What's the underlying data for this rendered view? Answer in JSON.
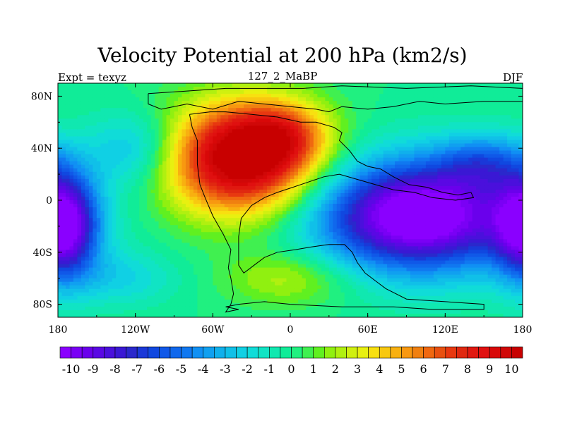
{
  "chart_data": {
    "type": "heatmap",
    "title": "Velocity Potential at 200 hPa (km2/s)",
    "left_string": "Expt = texyz",
    "center_string": "127_2_MaBP",
    "right_string": "DJF",
    "x_ticks": [
      {
        "value": -180,
        "label": "180"
      },
      {
        "value": -120,
        "label": "120W"
      },
      {
        "value": -60,
        "label": "60W"
      },
      {
        "value": 0,
        "label": "0"
      },
      {
        "value": 60,
        "label": "60E"
      },
      {
        "value": 120,
        "label": "120E"
      },
      {
        "value": 180,
        "label": "180"
      }
    ],
    "y_ticks": [
      {
        "value": 80,
        "label": "80N"
      },
      {
        "value": 40,
        "label": "40N"
      },
      {
        "value": 0,
        "label": "0"
      },
      {
        "value": -40,
        "label": "40S"
      },
      {
        "value": -80,
        "label": "80S"
      }
    ],
    "xlim": [
      -180,
      180
    ],
    "ylim": [
      -90,
      90
    ],
    "colorbar": {
      "min": -10.5,
      "max": 10.5,
      "step": 0.5,
      "labels": [
        "-10",
        "-9",
        "-8",
        "-7",
        "-6",
        "-5",
        "-4",
        "-3",
        "-2",
        "-1",
        "0",
        "1",
        "2",
        "3",
        "4",
        "5",
        "6",
        "7",
        "8",
        "9",
        "10"
      ],
      "label_values": [
        -10,
        -9,
        -8,
        -7,
        -6,
        -5,
        -4,
        -3,
        -2,
        -1,
        0,
        1,
        2,
        3,
        4,
        5,
        6,
        7,
        8,
        9,
        10
      ],
      "colors": [
        "#8a00ff",
        "#7a00f5",
        "#6a00ec",
        "#5a08e4",
        "#4a10dc",
        "#3a18d4",
        "#2a28cc",
        "#1a38d8",
        "#1048e0",
        "#1058e8",
        "#1068ec",
        "#1078f0",
        "#1090f4",
        "#10a0f0",
        "#10b0ec",
        "#10c0e8",
        "#10d0e4",
        "#10dcd8",
        "#10e4c4",
        "#10e8b0",
        "#10ec98",
        "#20f080",
        "#40f050",
        "#60f020",
        "#90f010",
        "#b0f010",
        "#d0f010",
        "#e8f010",
        "#f8e010",
        "#f8c810",
        "#f8b010",
        "#f89810",
        "#f08010",
        "#f06810",
        "#e85010",
        "#e83810",
        "#e02810",
        "#e01810",
        "#e01010",
        "#d80808",
        "#d00808",
        "#c80000"
      ]
    },
    "field_centers": [
      {
        "lon": -38,
        "lat": 32,
        "amplitude": 11.5,
        "lon_width": 40,
        "lat_width": 30
      },
      {
        "lon": -5,
        "lat": 50,
        "amplitude": 4.0,
        "lon_width": 25,
        "lat_width": 18
      },
      {
        "lon": 100,
        "lat": -12,
        "amplitude": -12.0,
        "lon_width": 55,
        "lat_width": 30
      },
      {
        "lon": -175,
        "lat": -20,
        "amplitude": -9.0,
        "lon_width": 18,
        "lat_width": 28
      },
      {
        "lon": 150,
        "lat": 30,
        "amplitude": -3.5,
        "lon_width": 25,
        "lat_width": 15
      },
      {
        "lon": -120,
        "lat": 40,
        "amplitude": -3.0,
        "lon_width": 25,
        "lat_width": 20
      },
      {
        "lon": -130,
        "lat": -60,
        "amplitude": -2.0,
        "lon_width": 30,
        "lat_width": 15
      },
      {
        "lon": 0,
        "lat": -60,
        "amplitude": 2.5,
        "lon_width": 35,
        "lat_width": 15
      }
    ],
    "coastlines": [
      {
        "name": "north-landmass",
        "points": [
          [
            -110,
            82
          ],
          [
            -80,
            84
          ],
          [
            -50,
            86
          ],
          [
            -20,
            86
          ],
          [
            10,
            86
          ],
          [
            40,
            88
          ],
          [
            90,
            86
          ],
          [
            140,
            88
          ],
          [
            180,
            86
          ],
          [
            180,
            76
          ],
          [
            150,
            76
          ],
          [
            120,
            74
          ],
          [
            100,
            76
          ],
          [
            80,
            72
          ],
          [
            60,
            70
          ],
          [
            40,
            72
          ],
          [
            30,
            68
          ],
          [
            20,
            70
          ],
          [
            0,
            72
          ],
          [
            -20,
            74
          ],
          [
            -40,
            76
          ],
          [
            -60,
            70
          ],
          [
            -80,
            74
          ],
          [
            -100,
            70
          ],
          [
            -110,
            74
          ],
          [
            -110,
            82
          ]
        ]
      },
      {
        "name": "america-block",
        "points": [
          [
            -78,
            66
          ],
          [
            -62,
            68
          ],
          [
            -50,
            68
          ],
          [
            -30,
            66
          ],
          [
            -10,
            64
          ],
          [
            8,
            60
          ],
          [
            20,
            60
          ],
          [
            34,
            56
          ],
          [
            40,
            52
          ],
          [
            38,
            46
          ],
          [
            46,
            38
          ],
          [
            52,
            30
          ],
          [
            60,
            26
          ],
          [
            70,
            24
          ],
          [
            80,
            18
          ],
          [
            92,
            12
          ],
          [
            106,
            10
          ],
          [
            118,
            6
          ],
          [
            130,
            4
          ],
          [
            140,
            6
          ],
          [
            142,
            2
          ],
          [
            128,
            0
          ],
          [
            110,
            2
          ],
          [
            96,
            6
          ],
          [
            80,
            8
          ],
          [
            66,
            12
          ],
          [
            52,
            16
          ],
          [
            38,
            20
          ],
          [
            26,
            18
          ],
          [
            14,
            14
          ],
          [
            2,
            10
          ],
          [
            -10,
            6
          ],
          [
            -20,
            2
          ],
          [
            -30,
            -4
          ],
          [
            -38,
            -14
          ],
          [
            -40,
            -28
          ],
          [
            -40,
            -50
          ],
          [
            -36,
            -56
          ],
          [
            -28,
            -50
          ],
          [
            -20,
            -44
          ],
          [
            -10,
            -40
          ],
          [
            4,
            -38
          ],
          [
            16,
            -36
          ],
          [
            30,
            -34
          ],
          [
            42,
            -34
          ],
          [
            48,
            -40
          ],
          [
            52,
            -48
          ],
          [
            58,
            -56
          ],
          [
            66,
            -62
          ],
          [
            74,
            -68
          ],
          [
            90,
            -76
          ],
          [
            120,
            -78
          ],
          [
            150,
            -80
          ],
          [
            150,
            -84
          ],
          [
            110,
            -84
          ],
          [
            80,
            -82
          ],
          [
            40,
            -82
          ],
          [
            0,
            -80
          ],
          [
            -20,
            -78
          ],
          [
            -40,
            -80
          ],
          [
            -50,
            -82
          ],
          [
            -40,
            -84
          ],
          [
            -50,
            -86
          ],
          [
            -46,
            -80
          ],
          [
            -44,
            -72
          ],
          [
            -46,
            -60
          ],
          [
            -48,
            -52
          ],
          [
            -46,
            -38
          ],
          [
            -52,
            -26
          ],
          [
            -60,
            -12
          ],
          [
            -66,
            2
          ],
          [
            -70,
            12
          ],
          [
            -72,
            28
          ],
          [
            -72,
            46
          ],
          [
            -76,
            56
          ],
          [
            -78,
            66
          ]
        ]
      }
    ]
  }
}
